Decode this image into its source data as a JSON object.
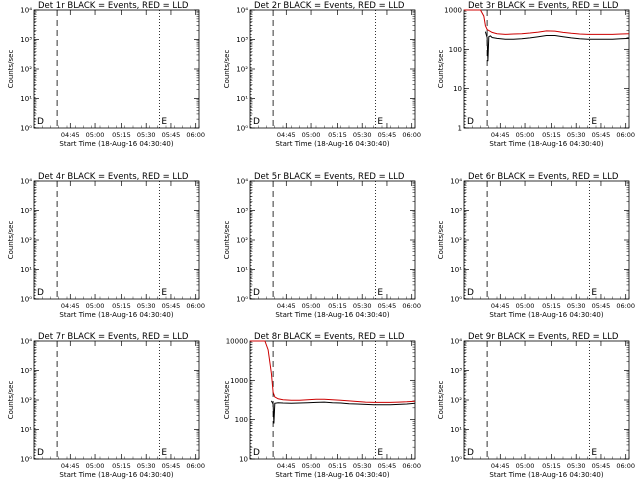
{
  "colors": {
    "events": "#000000",
    "lld": "#cc0000",
    "axes": "#000000",
    "background": "#ffffff"
  },
  "chart_data": [
    {
      "type": "line",
      "title": "Det 1r BLACK = Events, RED = LLD",
      "xlabel": "Start Time (18-Aug-16 04:30:40)",
      "ylabel": "Counts/sec",
      "log_y": true,
      "ylim": [
        1,
        10000
      ],
      "ytick_labels": [
        "10⁰",
        "10¹",
        "10²",
        "10³",
        "10⁴"
      ],
      "xtick_labels": [
        "04:45",
        "05:00",
        "05:15",
        "05:30",
        "05:45",
        "06:00"
      ],
      "xrange_min": [
        0,
        100
      ],
      "markers": [
        {
          "label": "D",
          "type": "dotted",
          "x": 0.6
        },
        {
          "label": "",
          "type": "dashed",
          "x": 14
        },
        {
          "label": "E",
          "type": "dotted",
          "x": 76
        }
      ],
      "series": []
    },
    {
      "type": "line",
      "title": "Det 2r BLACK = Events, RED = LLD",
      "xlabel": "Start Time (18-Aug-16 04:30:40)",
      "ylabel": "Counts/sec",
      "log_y": true,
      "ylim": [
        1,
        10000
      ],
      "ytick_labels": [
        "10⁰",
        "10¹",
        "10²",
        "10³",
        "10⁴"
      ],
      "xtick_labels": [
        "04:45",
        "05:00",
        "05:15",
        "05:30",
        "05:45",
        "06:00"
      ],
      "xrange_min": [
        0,
        100
      ],
      "markers": [
        {
          "label": "D",
          "type": "dotted",
          "x": 0.6
        },
        {
          "label": "",
          "type": "dashed",
          "x": 14
        },
        {
          "label": "E",
          "type": "dotted",
          "x": 76
        }
      ],
      "series": []
    },
    {
      "type": "line",
      "title": "Det 3r BLACK = Events, RED = LLD",
      "xlabel": "Start Time (18-Aug-16 04:30:40)",
      "ylabel": "Counts/sec",
      "log_y": true,
      "ylim": [
        1,
        1000
      ],
      "ytick_labels": [
        "1",
        "10",
        "100",
        "1000"
      ],
      "xtick_labels": [
        "04:45",
        "05:00",
        "05:15",
        "05:30",
        "05:45",
        "06:00"
      ],
      "xrange_min": [
        0,
        100
      ],
      "markers": [
        {
          "label": "D",
          "type": "dotted",
          "x": 0.6
        },
        {
          "label": "",
          "type": "dashed",
          "x": 14
        },
        {
          "label": "E",
          "type": "dotted",
          "x": 76
        }
      ],
      "series": [
        {
          "color": "lld",
          "x": [
            0,
            2,
            6,
            10,
            12,
            13,
            14,
            17,
            20,
            25,
            30,
            35,
            40,
            45,
            50,
            55,
            60,
            65,
            70,
            75,
            80,
            85,
            90,
            95,
            100
          ],
          "y": [
            1000,
            1000,
            1000,
            1000,
            700,
            400,
            320,
            270,
            250,
            240,
            245,
            250,
            260,
            275,
            295,
            290,
            270,
            255,
            245,
            240,
            240,
            240,
            240,
            245,
            250
          ]
        },
        {
          "color": "events",
          "x": [
            13,
            14,
            14.5,
            15,
            16,
            17,
            20,
            25,
            30,
            35,
            40,
            45,
            50,
            55,
            60,
            65,
            70,
            75,
            80,
            85,
            90,
            95,
            100
          ],
          "y": [
            280,
            200,
            50,
            210,
            220,
            200,
            190,
            180,
            180,
            185,
            195,
            210,
            225,
            225,
            210,
            195,
            185,
            180,
            180,
            180,
            180,
            185,
            190
          ]
        }
      ]
    },
    {
      "type": "line",
      "title": "Det 4r BLACK = Events, RED = LLD",
      "xlabel": "Start Time (18-Aug-16 04:30:40)",
      "ylabel": "Counts/sec",
      "log_y": true,
      "ylim": [
        1,
        10000
      ],
      "ytick_labels": [
        "10⁰",
        "10¹",
        "10²",
        "10³",
        "10⁴"
      ],
      "xtick_labels": [
        "04:45",
        "05:00",
        "05:15",
        "05:30",
        "05:45",
        "06:00"
      ],
      "xrange_min": [
        0,
        100
      ],
      "markers": [
        {
          "label": "D",
          "type": "dotted",
          "x": 0.6
        },
        {
          "label": "",
          "type": "dashed",
          "x": 14
        },
        {
          "label": "E",
          "type": "dotted",
          "x": 76
        }
      ],
      "series": []
    },
    {
      "type": "line",
      "title": "Det 5r BLACK = Events, RED = LLD",
      "xlabel": "Start Time (18-Aug-16 04:30:40)",
      "ylabel": "Counts/sec",
      "log_y": true,
      "ylim": [
        1,
        10000
      ],
      "ytick_labels": [
        "10⁰",
        "10¹",
        "10²",
        "10³",
        "10⁴"
      ],
      "xtick_labels": [
        "04:45",
        "05:00",
        "05:15",
        "05:30",
        "05:45",
        "06:00"
      ],
      "xrange_min": [
        0,
        100
      ],
      "markers": [
        {
          "label": "D",
          "type": "dotted",
          "x": 0.6
        },
        {
          "label": "",
          "type": "dashed",
          "x": 14
        },
        {
          "label": "E",
          "type": "dotted",
          "x": 76
        }
      ],
      "series": []
    },
    {
      "type": "line",
      "title": "Det 6r BLACK = Events, RED = LLD",
      "xlabel": "Start Time (18-Aug-16 04:30:40)",
      "ylabel": "Counts/sec",
      "log_y": true,
      "ylim": [
        1,
        10000
      ],
      "ytick_labels": [
        "10⁰",
        "10¹",
        "10²",
        "10³",
        "10⁴"
      ],
      "xtick_labels": [
        "04:45",
        "05:00",
        "05:15",
        "05:30",
        "05:45",
        "06:00"
      ],
      "xrange_min": [
        0,
        100
      ],
      "markers": [
        {
          "label": "D",
          "type": "dotted",
          "x": 0.6
        },
        {
          "label": "",
          "type": "dashed",
          "x": 14
        },
        {
          "label": "E",
          "type": "dotted",
          "x": 76
        }
      ],
      "series": []
    },
    {
      "type": "line",
      "title": "Det 7r BLACK = Events, RED = LLD",
      "xlabel": "Start Time (18-Aug-16 04:30:40)",
      "ylabel": "Counts/sec",
      "log_y": true,
      "ylim": [
        1,
        10000
      ],
      "ytick_labels": [
        "10⁰",
        "10¹",
        "10²",
        "10³",
        "10⁴"
      ],
      "xtick_labels": [
        "04:45",
        "05:00",
        "05:15",
        "05:30",
        "05:45",
        "06:00"
      ],
      "xrange_min": [
        0,
        100
      ],
      "markers": [
        {
          "label": "D",
          "type": "dotted",
          "x": 0.6
        },
        {
          "label": "",
          "type": "dashed",
          "x": 14
        },
        {
          "label": "E",
          "type": "dotted",
          "x": 76
        }
      ],
      "series": []
    },
    {
      "type": "line",
      "title": "Det 8r BLACK = Events, RED = LLD",
      "xlabel": "Start Time (18-Aug-16 04:30:40)",
      "ylabel": "Counts/sec",
      "log_y": true,
      "ylim": [
        10,
        10000
      ],
      "ytick_labels": [
        "10",
        "100",
        "1000",
        "10000"
      ],
      "xtick_labels": [
        "04:45",
        "05:00",
        "05:15",
        "05:30",
        "05:45",
        "06:00"
      ],
      "xrange_min": [
        0,
        100
      ],
      "markers": [
        {
          "label": "D",
          "type": "dotted",
          "x": 0.6
        },
        {
          "label": "",
          "type": "dashed",
          "x": 14
        },
        {
          "label": "E",
          "type": "dotted",
          "x": 76
        }
      ],
      "series": [
        {
          "color": "lld",
          "x": [
            0,
            6,
            9,
            11,
            13,
            14,
            15,
            17,
            20,
            25,
            30,
            35,
            40,
            45,
            50,
            55,
            60,
            65,
            70,
            75,
            80,
            85,
            90,
            95,
            100
          ],
          "y": [
            10000,
            10000,
            10000,
            6000,
            1500,
            500,
            380,
            340,
            320,
            310,
            310,
            320,
            330,
            330,
            320,
            310,
            300,
            290,
            280,
            275,
            275,
            275,
            280,
            285,
            295
          ]
        },
        {
          "color": "events",
          "x": [
            13,
            14,
            14.5,
            15,
            17,
            20,
            25,
            30,
            35,
            40,
            45,
            50,
            55,
            60,
            65,
            70,
            75,
            80,
            85,
            90,
            95,
            100
          ],
          "y": [
            300,
            250,
            80,
            260,
            270,
            265,
            260,
            265,
            270,
            275,
            280,
            270,
            265,
            255,
            250,
            245,
            240,
            240,
            240,
            245,
            250,
            260
          ]
        }
      ]
    },
    {
      "type": "line",
      "title": "Det 9r BLACK = Events, RED = LLD",
      "xlabel": "Start Time (18-Aug-16 04:30:40)",
      "ylabel": "Counts/sec",
      "log_y": true,
      "ylim": [
        1,
        10000
      ],
      "ytick_labels": [
        "10⁰",
        "10¹",
        "10²",
        "10³",
        "10⁴"
      ],
      "xtick_labels": [
        "04:45",
        "05:00",
        "05:15",
        "05:30",
        "05:45",
        "06:00"
      ],
      "xrange_min": [
        0,
        100
      ],
      "markers": [
        {
          "label": "D",
          "type": "dotted",
          "x": 0.6
        },
        {
          "label": "",
          "type": "dashed",
          "x": 14
        },
        {
          "label": "E",
          "type": "dotted",
          "x": 76
        }
      ],
      "series": []
    }
  ]
}
